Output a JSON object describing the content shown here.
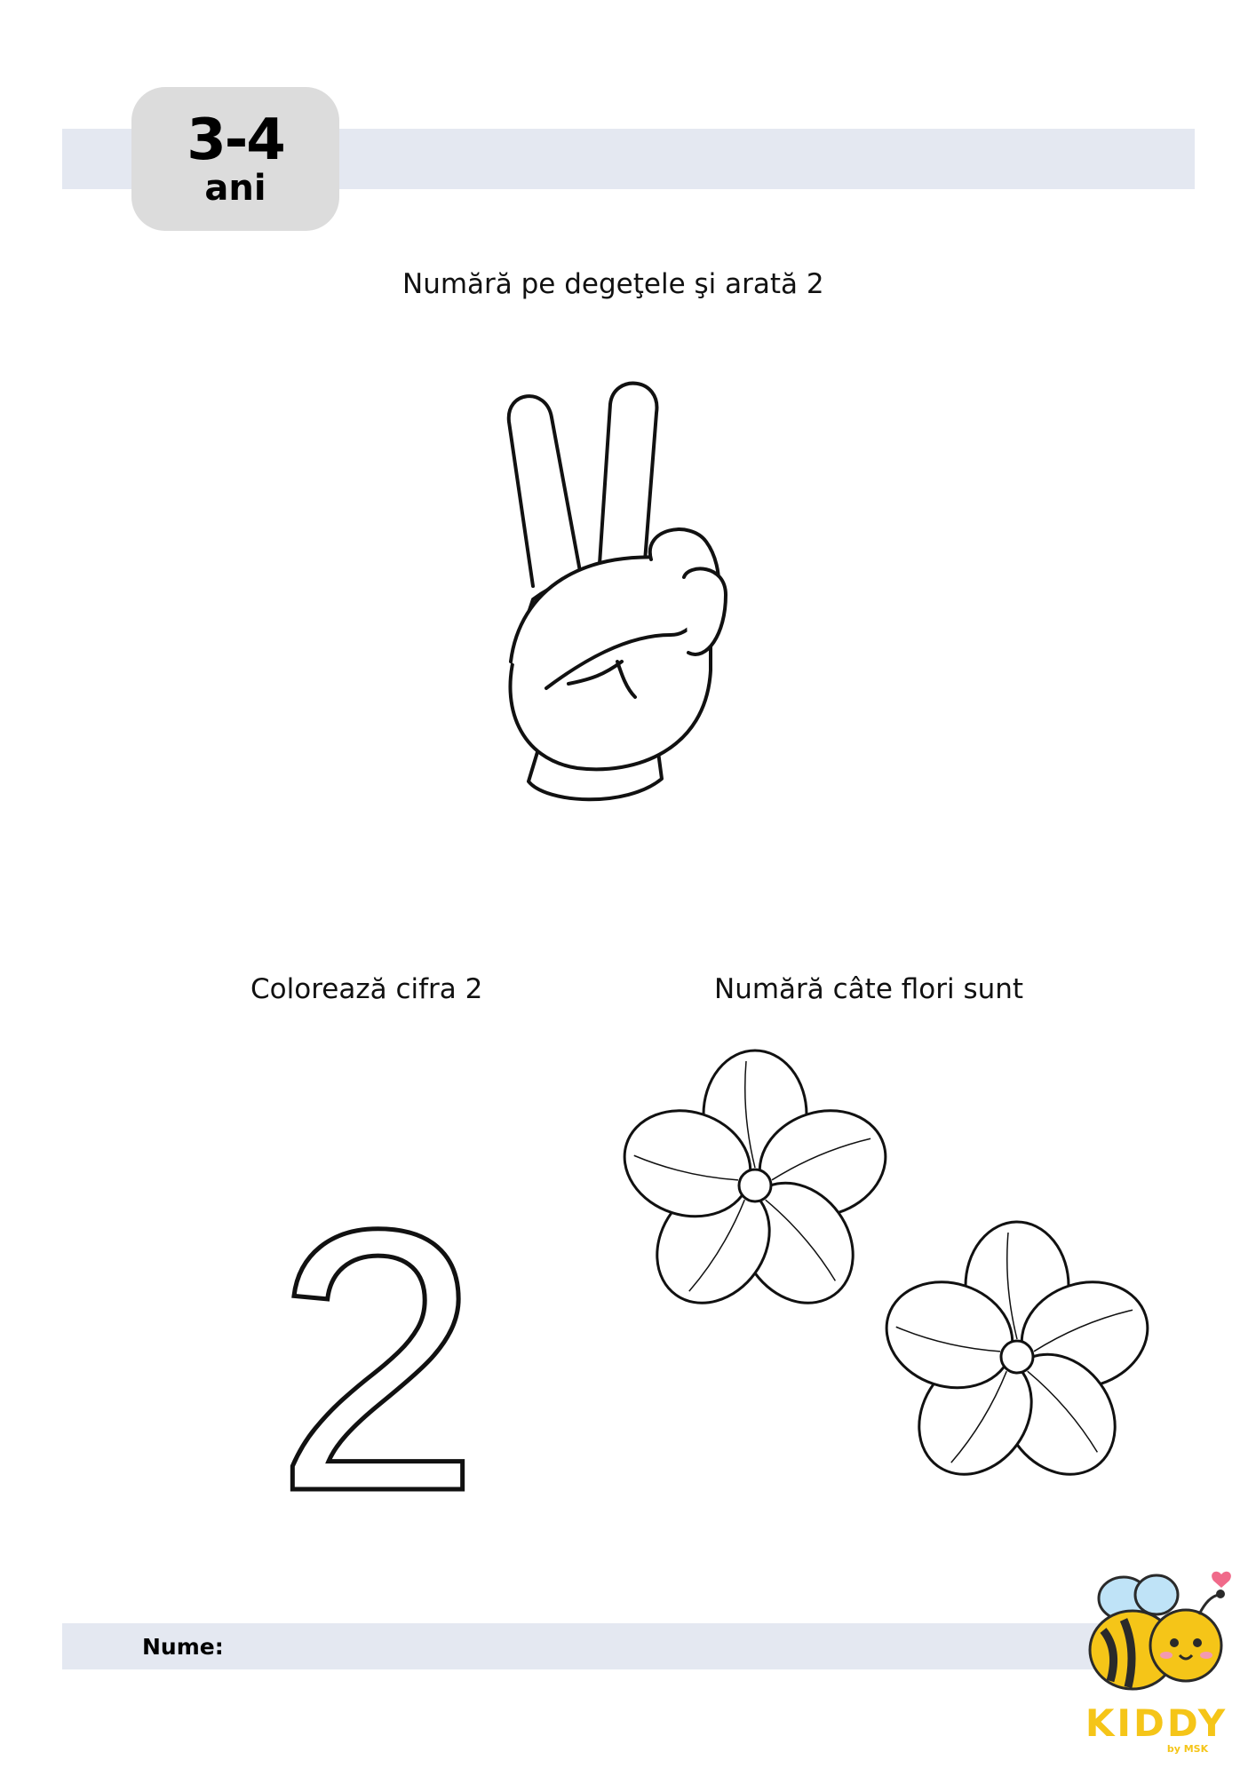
{
  "header": {
    "age_range": "3-4",
    "age_unit": "ani"
  },
  "instructions": {
    "count_fingers": "Numără pe degeţele şi arată 2",
    "color_digit": "Colorează cifra 2",
    "count_flowers": "Numără câte flori sunt"
  },
  "digit": "2",
  "flowers": {
    "count": 2
  },
  "footer": {
    "name_label": "Nume:"
  },
  "logo": {
    "brand": "KIDDY",
    "sub": "by MSK"
  },
  "colors": {
    "band": "#e4e8f1",
    "age_tab": "#dcdcdc",
    "logo_yellow": "#f5c518",
    "bee_wing": "#bfe3f7",
    "heart": "#f06a8a"
  }
}
